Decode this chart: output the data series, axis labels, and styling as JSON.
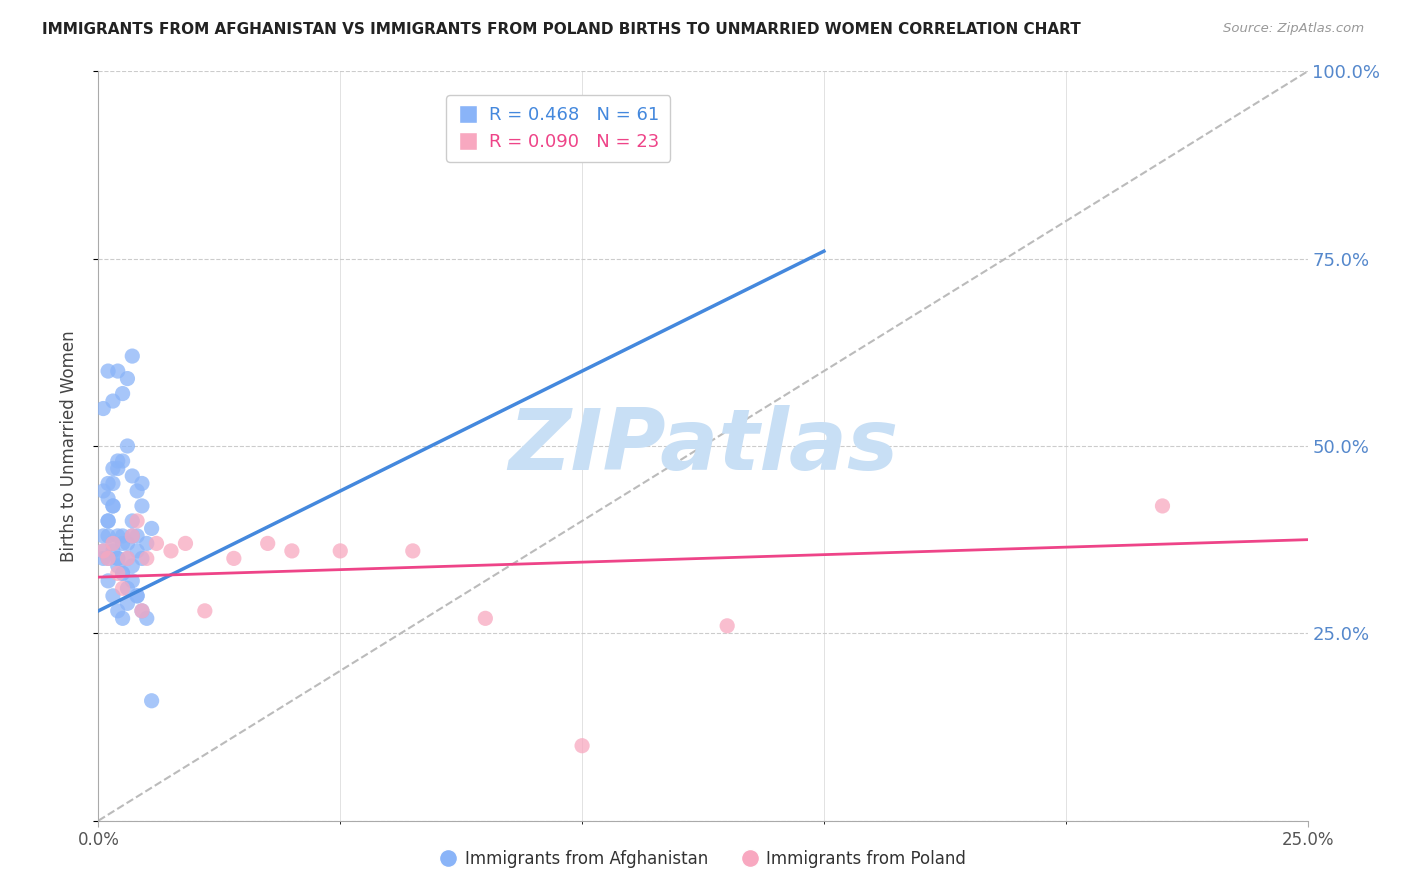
{
  "title": "IMMIGRANTS FROM AFGHANISTAN VS IMMIGRANTS FROM POLAND BIRTHS TO UNMARRIED WOMEN CORRELATION CHART",
  "source": "Source: ZipAtlas.com",
  "ylabel": "Births to Unmarried Women",
  "xmin": 0.0,
  "xmax": 0.25,
  "ymin": 0.0,
  "ymax": 1.0,
  "yticks": [
    0.0,
    0.25,
    0.5,
    0.75,
    1.0
  ],
  "ytick_labels": [
    "",
    "25.0%",
    "50.0%",
    "75.0%",
    "100.0%"
  ],
  "xticks": [
    0.0,
    0.25
  ],
  "xtick_labels": [
    "0.0%",
    "25.0%"
  ],
  "legend_r_afg": "0.468",
  "legend_n_afg": "61",
  "legend_r_pol": "0.090",
  "legend_n_pol": "23",
  "color_afg": "#8ab4f8",
  "color_pol": "#f8a8c0",
  "color_afg_line": "#4488dd",
  "color_pol_line": "#ee4488",
  "color_diag": "#bbbbbb",
  "color_right_axis": "#5588cc",
  "watermark_color": "#c8dff5",
  "afg_x": [
    0.002,
    0.003,
    0.004,
    0.005,
    0.006,
    0.007,
    0.008,
    0.009,
    0.01,
    0.011,
    0.001,
    0.002,
    0.003,
    0.004,
    0.005,
    0.006,
    0.007,
    0.002,
    0.003,
    0.004,
    0.001,
    0.002,
    0.003,
    0.004,
    0.005,
    0.003,
    0.004,
    0.005,
    0.006,
    0.007,
    0.001,
    0.002,
    0.003,
    0.004,
    0.005,
    0.006,
    0.007,
    0.008,
    0.001,
    0.002,
    0.002,
    0.003,
    0.004,
    0.005,
    0.006,
    0.007,
    0.008,
    0.009,
    0.008,
    0.009,
    0.001,
    0.002,
    0.003,
    0.004,
    0.005,
    0.006,
    0.007,
    0.008,
    0.009,
    0.01,
    0.011
  ],
  "afg_y": [
    0.38,
    0.36,
    0.34,
    0.37,
    0.35,
    0.4,
    0.38,
    0.42,
    0.37,
    0.39,
    0.55,
    0.6,
    0.56,
    0.6,
    0.57,
    0.59,
    0.62,
    0.45,
    0.47,
    0.48,
    0.35,
    0.4,
    0.42,
    0.35,
    0.33,
    0.45,
    0.47,
    0.48,
    0.5,
    0.46,
    0.38,
    0.4,
    0.42,
    0.35,
    0.33,
    0.31,
    0.34,
    0.36,
    0.44,
    0.43,
    0.32,
    0.3,
    0.28,
    0.27,
    0.29,
    0.32,
    0.3,
    0.35,
    0.44,
    0.45,
    0.36,
    0.35,
    0.37,
    0.38,
    0.38,
    0.37,
    0.38,
    0.3,
    0.28,
    0.27,
    0.16
  ],
  "pol_x": [
    0.001,
    0.002,
    0.003,
    0.004,
    0.005,
    0.006,
    0.007,
    0.008,
    0.009,
    0.01,
    0.012,
    0.015,
    0.018,
    0.022,
    0.028,
    0.035,
    0.04,
    0.05,
    0.065,
    0.08,
    0.1,
    0.13,
    0.22
  ],
  "pol_y": [
    0.36,
    0.35,
    0.37,
    0.33,
    0.31,
    0.35,
    0.38,
    0.4,
    0.28,
    0.35,
    0.37,
    0.36,
    0.37,
    0.28,
    0.35,
    0.37,
    0.36,
    0.36,
    0.36,
    0.27,
    0.1,
    0.26,
    0.42
  ],
  "afg_line_x0": 0.0,
  "afg_line_y0": 0.28,
  "afg_line_x1": 0.15,
  "afg_line_y1": 0.76,
  "pol_line_x0": 0.0,
  "pol_line_y0": 0.325,
  "pol_line_x1": 0.25,
  "pol_line_y1": 0.375
}
